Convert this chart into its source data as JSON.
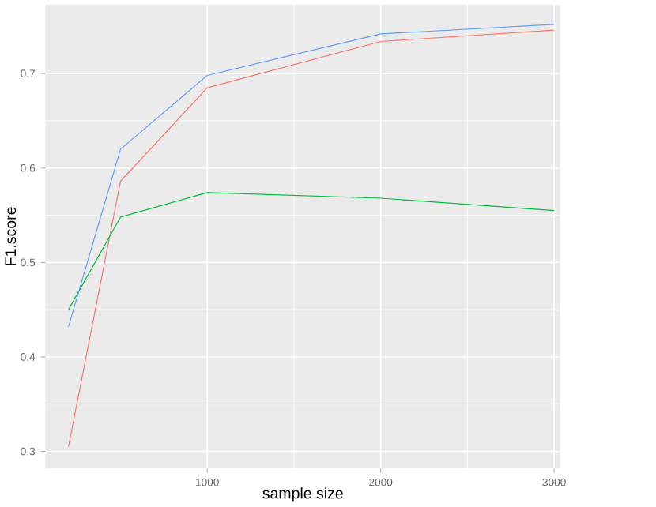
{
  "chart_data": {
    "type": "line",
    "xlabel": "sample size",
    "ylabel": "F1.score",
    "x": [
      200,
      500,
      1000,
      2000,
      3000
    ],
    "series": [
      {
        "color": "#f8766d",
        "values": [
          0.305,
          0.586,
          0.685,
          0.734,
          0.746
        ]
      },
      {
        "color": "#00ba38",
        "values": [
          0.45,
          0.548,
          0.574,
          0.568,
          0.555
        ]
      },
      {
        "color": "#619cff",
        "values": [
          0.432,
          0.62,
          0.698,
          0.742,
          0.752
        ]
      }
    ],
    "xlim": [
      67,
      3036
    ],
    "ylim": [
      0.282,
      0.773
    ],
    "xticks": [
      1000,
      2000,
      3000
    ],
    "yticks": [
      0.3,
      0.4,
      0.5,
      0.6,
      0.7
    ],
    "grid": true
  }
}
